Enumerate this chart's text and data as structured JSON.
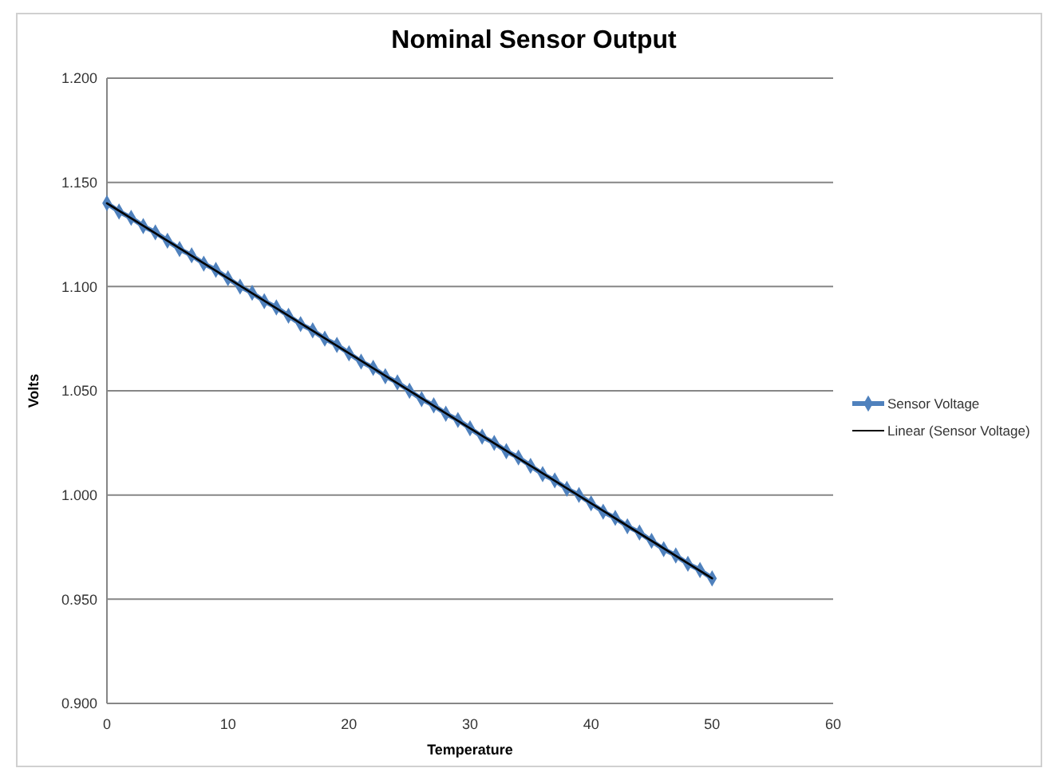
{
  "chart_data": {
    "type": "line",
    "title": "Nominal Sensor Output",
    "xlabel": "Temperature",
    "ylabel": "Volts",
    "x": [
      0,
      1,
      2,
      3,
      4,
      5,
      6,
      7,
      8,
      9,
      10,
      11,
      12,
      13,
      14,
      15,
      16,
      17,
      18,
      19,
      20,
      21,
      22,
      23,
      24,
      25,
      26,
      27,
      28,
      29,
      30,
      31,
      32,
      33,
      34,
      35,
      36,
      37,
      38,
      39,
      40,
      41,
      42,
      43,
      44,
      45,
      46,
      47,
      48,
      49,
      50
    ],
    "series": [
      {
        "name": "Sensor Voltage",
        "color": "#4f81bd",
        "marker": "diamond",
        "values": [
          1.14,
          1.136,
          1.133,
          1.129,
          1.126,
          1.122,
          1.118,
          1.115,
          1.111,
          1.108,
          1.104,
          1.1,
          1.097,
          1.093,
          1.09,
          1.086,
          1.082,
          1.079,
          1.075,
          1.072,
          1.068,
          1.064,
          1.061,
          1.057,
          1.054,
          1.05,
          1.046,
          1.043,
          1.039,
          1.036,
          1.032,
          1.028,
          1.025,
          1.021,
          1.018,
          1.014,
          1.01,
          1.007,
          1.003,
          1.0,
          0.996,
          0.992,
          0.989,
          0.985,
          0.982,
          0.978,
          0.974,
          0.971,
          0.967,
          0.964,
          0.96
        ]
      },
      {
        "name": "Linear (Sensor Voltage)",
        "color": "#000000",
        "marker": "none",
        "x": [
          0,
          50
        ],
        "values": [
          1.14,
          0.96
        ]
      }
    ],
    "xlim": [
      0,
      60
    ],
    "xticks": [
      0,
      10,
      20,
      30,
      40,
      50,
      60
    ],
    "ylim": [
      0.9,
      1.2
    ],
    "yticks": [
      {
        "value": 0.9,
        "label": "0.900"
      },
      {
        "value": 0.95,
        "label": "0.950"
      },
      {
        "value": 1.0,
        "label": "1.000"
      },
      {
        "value": 1.05,
        "label": "1.050"
      },
      {
        "value": 1.1,
        "label": "1.100"
      },
      {
        "value": 1.15,
        "label": "1.150"
      },
      {
        "value": 1.2,
        "label": "1.200"
      }
    ],
    "grid": "y",
    "legend": "right"
  }
}
